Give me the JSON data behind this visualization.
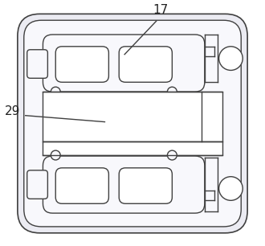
{
  "bg_color": "#ffffff",
  "line_color": "#404040",
  "fill_light": "#ebebf2",
  "fig_width": 3.3,
  "fig_height": 3.06,
  "dpi": 100,
  "label_17": "17",
  "label_29": "29"
}
